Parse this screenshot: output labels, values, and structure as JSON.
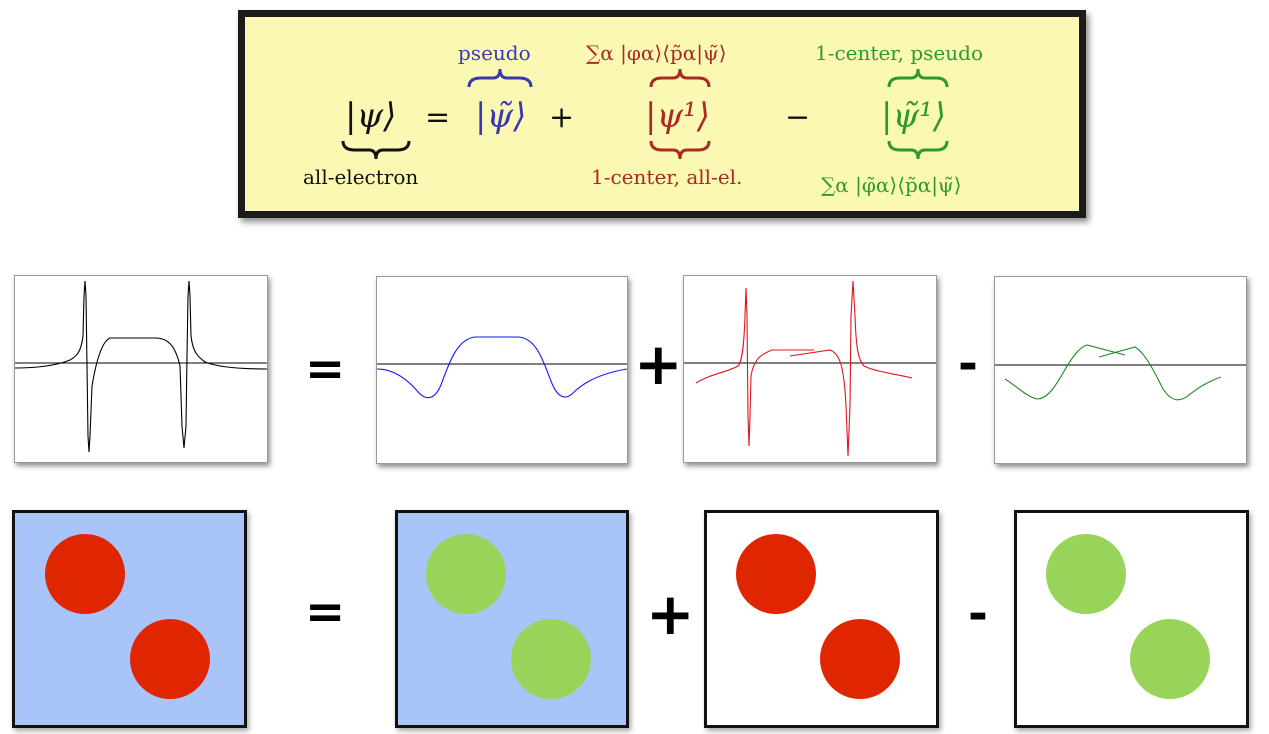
{
  "equation": {
    "lhs": "|ψ⟩",
    "equals": "=",
    "term_pseudo": "|ψ̃⟩",
    "plus": "+",
    "term_one_center": "|ψ¹⟩",
    "minus": "−",
    "term_one_center_pseudo": "|ψ̃¹⟩",
    "label_all_electron": "all-electron",
    "label_pseudo": "pseudo",
    "label_sum_ae": "∑α |φα⟩⟨p̃α|ψ̃⟩",
    "label_one_center_all_el": "1-center, all-el.",
    "label_one_center_pseudo": "1-center, pseudo",
    "label_sum_ps": "∑α |φ̃α⟩⟨p̃α|ψ̃⟩",
    "colors": {
      "pseudo": "#3a39b0",
      "one_center": "#ad2a22",
      "one_center_pseudo": "#2f9a2c"
    }
  },
  "plot_row": {
    "equals": "=",
    "plus": "+",
    "minus": "-",
    "curve_colors": [
      "#000000",
      "#0000ff",
      "#e0141e",
      "#1f8a1f"
    ]
  },
  "region_row": {
    "equals": "=",
    "plus": "+",
    "minus": "-",
    "colors": {
      "interstitial": "#a8c4f8",
      "all_electron_sphere": "#e02600",
      "pseudo_sphere": "#98d45a"
    }
  }
}
